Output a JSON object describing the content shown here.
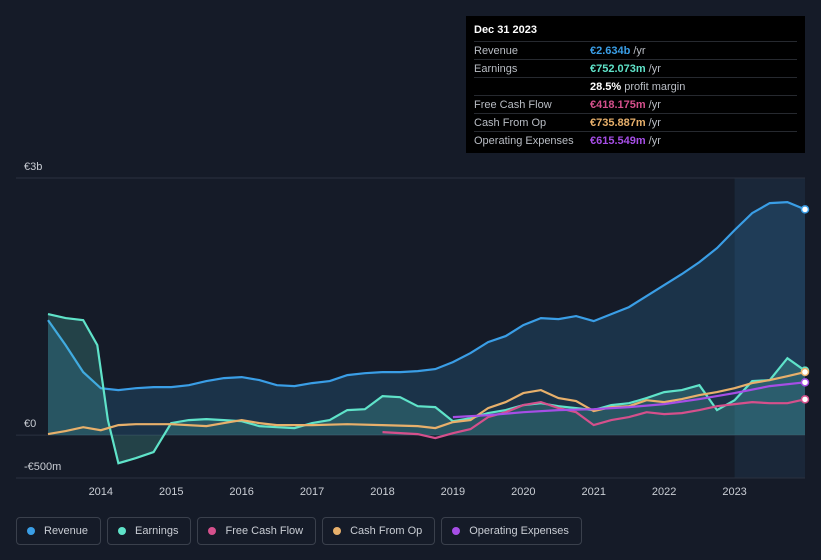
{
  "chart_data": {
    "type": "line",
    "xlim": [
      2013.25,
      2024.0
    ],
    "xticks": [
      2014,
      2015,
      2016,
      2017,
      2018,
      2019,
      2020,
      2021,
      2022,
      2023
    ],
    "ylim": [
      -500,
      3000
    ],
    "yticks": [
      {
        "value": 3000,
        "label": "€3b"
      },
      {
        "value": 0,
        "label": "€0"
      },
      {
        "value": -500,
        "label": "-€500m"
      }
    ],
    "grid": true,
    "series": [
      {
        "name": "Revenue",
        "color": "#3a9ee6",
        "x": [
          2013.25,
          2013.5,
          2013.75,
          2014.0,
          2014.25,
          2014.5,
          2014.75,
          2015.0,
          2015.25,
          2015.5,
          2015.75,
          2016.0,
          2016.25,
          2016.5,
          2016.75,
          2017.0,
          2017.25,
          2017.5,
          2017.75,
          2018.0,
          2018.25,
          2018.5,
          2018.75,
          2019.0,
          2019.25,
          2019.5,
          2019.75,
          2020.0,
          2020.25,
          2020.5,
          2020.75,
          2021.0,
          2021.25,
          2021.5,
          2021.75,
          2022.0,
          2022.25,
          2022.5,
          2022.75,
          2023.0,
          2023.25,
          2023.5,
          2023.75,
          2024.0
        ],
        "values": [
          1342,
          1050,
          735,
          548,
          525,
          548,
          560,
          560,
          583,
          630,
          665,
          677,
          642,
          583,
          572,
          607,
          630,
          700,
          723,
          735,
          735,
          747,
          770,
          852,
          957,
          1085,
          1155,
          1284,
          1365,
          1354,
          1389,
          1330,
          1412,
          1494,
          1622,
          1750,
          1879,
          2019,
          2182,
          2392,
          2590,
          2707,
          2719,
          2634
        ]
      },
      {
        "name": "Earnings",
        "color": "#5fe3c9",
        "x": [
          2013.25,
          2013.5,
          2013.75,
          2013.95,
          2014.1,
          2014.25,
          2014.5,
          2014.75,
          2015.0,
          2015.25,
          2015.5,
          2015.75,
          2016.0,
          2016.25,
          2016.5,
          2016.75,
          2017.0,
          2017.25,
          2017.5,
          2017.75,
          2018.0,
          2018.25,
          2018.5,
          2018.75,
          2019.0,
          2019.25,
          2019.5,
          2019.75,
          2020.0,
          2020.25,
          2020.5,
          2020.75,
          2021.0,
          2021.25,
          2021.5,
          2021.75,
          2022.0,
          2022.25,
          2022.5,
          2022.75,
          2023.0,
          2023.25,
          2023.5,
          2023.75,
          2024.0
        ],
        "values": [
          1412,
          1365,
          1342,
          1050,
          175,
          -327,
          -268,
          -198,
          140,
          175,
          187,
          175,
          163,
          105,
          93,
          82,
          140,
          175,
          292,
          303,
          455,
          443,
          338,
          327,
          163,
          198,
          257,
          292,
          350,
          373,
          338,
          315,
          292,
          350,
          373,
          432,
          502,
          525,
          583,
          292,
          408,
          630,
          642,
          898,
          752
        ]
      },
      {
        "name": "Free Cash Flow",
        "color": "#d5508c",
        "x": [
          2018.0,
          2018.5,
          2018.75,
          2019.0,
          2019.25,
          2019.5,
          2019.75,
          2020.0,
          2020.25,
          2020.5,
          2020.75,
          2021.0,
          2021.25,
          2021.5,
          2021.75,
          2022.0,
          2022.25,
          2022.5,
          2022.75,
          2023.0,
          2023.25,
          2023.5,
          2023.75,
          2024.0
        ],
        "values": [
          35,
          12,
          -35,
          23,
          70,
          210,
          268,
          350,
          385,
          315,
          268,
          117,
          175,
          210,
          268,
          245,
          257,
          292,
          338,
          362,
          385,
          373,
          373,
          418
        ]
      },
      {
        "name": "Cash From Op",
        "color": "#e8b06b",
        "x": [
          2013.25,
          2013.5,
          2013.75,
          2014.0,
          2014.25,
          2014.5,
          2014.75,
          2015.0,
          2015.5,
          2015.75,
          2016.0,
          2016.25,
          2016.5,
          2017.0,
          2017.5,
          2018.0,
          2018.5,
          2018.75,
          2019.0,
          2019.25,
          2019.5,
          2019.75,
          2020.0,
          2020.25,
          2020.5,
          2020.75,
          2021.0,
          2021.25,
          2021.5,
          2021.75,
          2022.0,
          2022.25,
          2022.5,
          2022.75,
          2023.0,
          2023.25,
          2023.5,
          2023.75,
          2024.0
        ],
        "values": [
          12,
          47,
          93,
          58,
          117,
          128,
          128,
          128,
          105,
          140,
          175,
          140,
          117,
          117,
          128,
          117,
          105,
          82,
          152,
          175,
          315,
          385,
          490,
          525,
          432,
          397,
          280,
          327,
          338,
          408,
          385,
          420,
          467,
          502,
          548,
          607,
          642,
          688,
          736
        ]
      },
      {
        "name": "Operating Expenses",
        "color": "#a64ee6",
        "x": [
          2019.0,
          2019.5,
          2020.0,
          2020.5,
          2021.0,
          2021.5,
          2022.0,
          2022.5,
          2023.0,
          2023.5,
          2024.0
        ],
        "values": [
          210,
          233,
          268,
          292,
          303,
          327,
          362,
          420,
          490,
          572,
          616
        ]
      }
    ],
    "tooltip": {
      "date": "Dec 31 2023",
      "rows": [
        {
          "label": "Revenue",
          "value": "€2.634b",
          "unit": "/yr",
          "color": "#3a9ee6"
        },
        {
          "label": "Earnings",
          "value": "€752.073m",
          "unit": "/yr",
          "color": "#5fe3c9"
        },
        {
          "label": "Free Cash Flow",
          "value": "€418.175m",
          "unit": "/yr",
          "color": "#d5508c"
        },
        {
          "label": "Cash From Op",
          "value": "€735.887m",
          "unit": "/yr",
          "color": "#e8b06b"
        },
        {
          "label": "Operating Expenses",
          "value": "€615.549m",
          "unit": "/yr",
          "color": "#a64ee6"
        }
      ],
      "margin": {
        "value": "28.5%",
        "label": "profit margin"
      }
    }
  }
}
